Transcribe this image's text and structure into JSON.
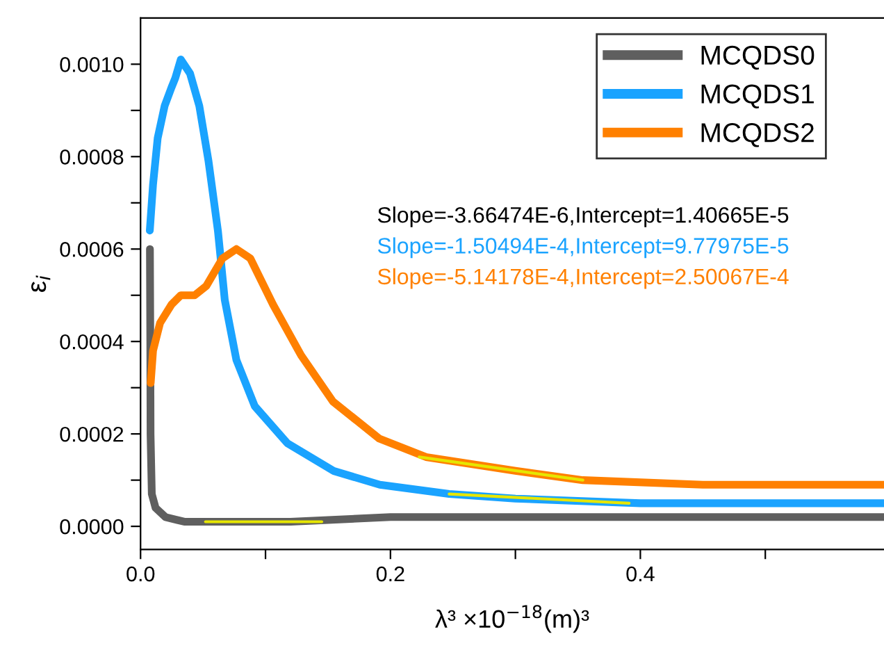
{
  "chart_data": {
    "type": "line",
    "xlabel": "λ³ ×10$^{−18}$(m)³",
    "ylabel": "ε$_{i}$",
    "xlim": [
      0,
      0.595
    ],
    "ylim": [
      -5e-05,
      0.0011
    ],
    "xticks": [
      {
        "value": 0,
        "label": "0.0"
      },
      {
        "value": 0.1,
        "label": null
      },
      {
        "value": 0.2,
        "label": "0.2"
      },
      {
        "value": 0.3,
        "label": null
      },
      {
        "value": 0.4,
        "label": "0.4"
      },
      {
        "value": 0.5,
        "label": null
      }
    ],
    "yticks": [
      {
        "value": 0,
        "label": "0.0000"
      },
      {
        "value": 0.0001,
        "label": null
      },
      {
        "value": 0.0002,
        "label": "0.0002"
      },
      {
        "value": 0.0003,
        "label": null
      },
      {
        "value": 0.0004,
        "label": "0.0004"
      },
      {
        "value": 0.0005,
        "label": null
      },
      {
        "value": 0.0006,
        "label": "0.0006"
      },
      {
        "value": 0.0007,
        "label": null
      },
      {
        "value": 0.0008,
        "label": "0.0008"
      },
      {
        "value": 0.0009,
        "label": null
      },
      {
        "value": 0.001,
        "label": "0.0010"
      }
    ],
    "legend": "top right",
    "grid": false,
    "line_style": "solid",
    "series": [
      {
        "name": "MCQDS0",
        "color": "#5f5f5f",
        "x": [
          0.0075,
          0.0078,
          0.008,
          0.009,
          0.012,
          0.02,
          0.035,
          0.06,
          0.12,
          0.2,
          0.3,
          0.4,
          0.5,
          0.595
        ],
        "values": [
          0.0006,
          0.0004,
          0.0002,
          7e-05,
          4e-05,
          2e-05,
          1e-05,
          1e-05,
          1e-05,
          2e-05,
          2e-05,
          2e-05,
          2e-05,
          2e-05
        ]
      },
      {
        "name": "MCQDS1",
        "color": "#1aa3ff",
        "x": [
          0.0074,
          0.01,
          0.0137,
          0.0193,
          0.0248,
          0.0278,
          0.0322,
          0.0396,
          0.047,
          0.0544,
          0.0619,
          0.0674,
          0.0767,
          0.0914,
          0.1174,
          0.1544,
          0.1915,
          0.247,
          0.3,
          0.4,
          0.5,
          0.595
        ],
        "values": [
          0.00064,
          0.00074,
          0.00084,
          0.00091,
          0.00095,
          0.00097,
          0.00101,
          0.00098,
          0.00091,
          0.00079,
          0.00064,
          0.00049,
          0.00036,
          0.00026,
          0.00018,
          0.00012,
          9e-05,
          7e-05,
          6e-05,
          5e-05,
          5e-05,
          5e-05
        ]
      },
      {
        "name": "MCQDS2",
        "color": "#ff8000",
        "x": [
          0.0081,
          0.01,
          0.0156,
          0.0248,
          0.0322,
          0.0433,
          0.0526,
          0.0656,
          0.0767,
          0.0878,
          0.106,
          0.1285,
          0.154,
          0.191,
          0.2285,
          0.3,
          0.354,
          0.45,
          0.595
        ],
        "values": [
          0.00031,
          0.00038,
          0.00044,
          0.00048,
          0.0005,
          0.0005,
          0.00052,
          0.00058,
          0.0006,
          0.00058,
          0.00048,
          0.00037,
          0.00027,
          0.00019,
          0.00015,
          0.00012,
          0.0001,
          9e-05,
          9e-05
        ]
      },
      {
        "type": "line",
        "color": "#e6e600",
        "x": [
          0.052,
          0.145
        ],
        "values": [
          1e-05,
          1e-05
        ]
      },
      {
        "type": "line",
        "color": "#e6e600",
        "x": [
          0.247,
          0.391
        ],
        "values": [
          7e-05,
          5e-05
        ]
      },
      {
        "type": "line",
        "color": "#e6e600",
        "x": [
          0.223,
          0.354
        ],
        "values": [
          0.00015,
          0.0001
        ]
      }
    ],
    "annotations": [
      "Slope=-3.66474E-6,Intercept=1.40665E-5",
      "Slope=-1.50494E-4,Intercept=9.77975E-5",
      "Slope=-5.14178E-4,Intercept=2.50067E-4"
    ]
  }
}
